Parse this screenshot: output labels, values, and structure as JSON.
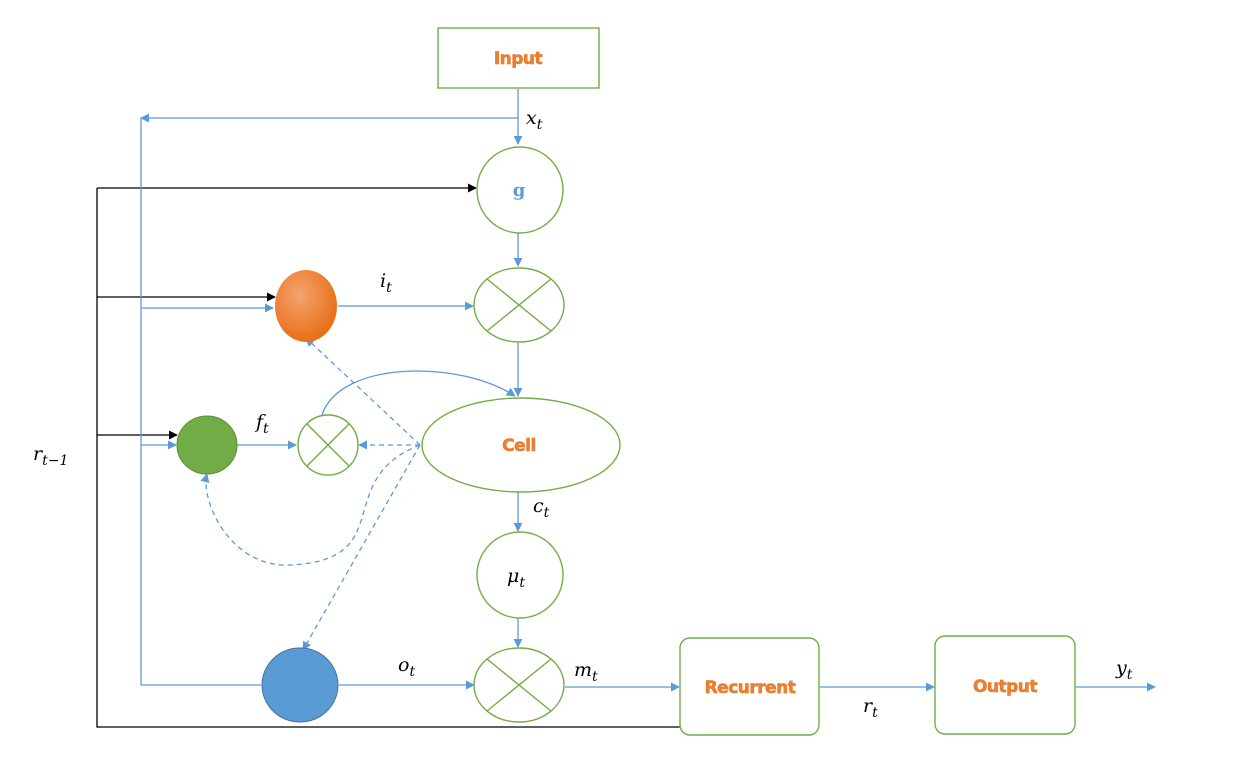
{
  "boxes": {
    "input": "Input",
    "cell": "Cell",
    "recurrent": "Recurrent",
    "output": "Output"
  },
  "gates": {
    "g": "g",
    "mu": {
      "base": "μ",
      "sub": "t"
    }
  },
  "signals": {
    "x": {
      "base": "x",
      "sub": "t"
    },
    "i": {
      "base": "i",
      "sub": "t"
    },
    "f": {
      "base": "f",
      "sub": "t"
    },
    "c": {
      "base": "c",
      "sub": "t"
    },
    "o": {
      "base": "o",
      "sub": "t"
    },
    "m": {
      "base": "m",
      "sub": "t"
    },
    "r": {
      "base": "r",
      "sub": "t"
    },
    "y": {
      "base": "y",
      "sub": "t"
    },
    "r_prev": {
      "base": "r",
      "sub": "t−1"
    }
  },
  "colors": {
    "box_border": "#70AD47",
    "arrow_blue": "#5B9BD5",
    "input_gate": "#ED7D31",
    "forget_gate": "#70AD47",
    "output_gate": "#5B9BD5",
    "label_orange": "#F07F2D"
  }
}
